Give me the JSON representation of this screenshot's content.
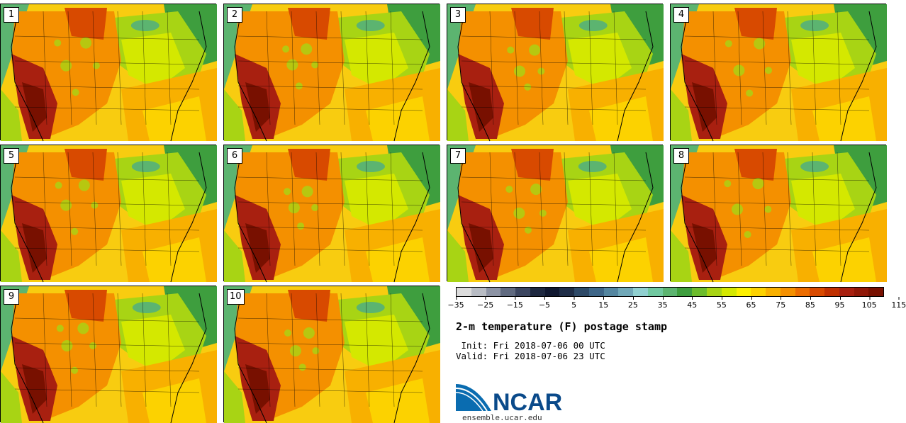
{
  "panels": [
    {
      "label": "1"
    },
    {
      "label": "2"
    },
    {
      "label": "3"
    },
    {
      "label": "4"
    },
    {
      "label": "5"
    },
    {
      "label": "6"
    },
    {
      "label": "7"
    },
    {
      "label": "8"
    },
    {
      "label": "9"
    },
    {
      "label": "10"
    }
  ],
  "colorbar": {
    "colors": [
      "#dcdcdc",
      "#b8bcc4",
      "#8c93a4",
      "#606a80",
      "#3c4660",
      "#1e2840",
      "#101830",
      "#202e48",
      "#2e4a68",
      "#3e6688",
      "#5486a0",
      "#70a8b8",
      "#90d0d0",
      "#70c8a0",
      "#5cb470",
      "#3e9e3e",
      "#6cbc2c",
      "#a8d414",
      "#d4e800",
      "#fcf000",
      "#fcd200",
      "#f8b000",
      "#f49000",
      "#ec6c00",
      "#d84a00",
      "#c03000",
      "#a82010",
      "#901808",
      "#781000"
    ],
    "tick_labels": [
      "−35",
      "−25",
      "−15",
      "−5",
      "5",
      "15",
      "25",
      "35",
      "45",
      "55",
      "65",
      "75",
      "85",
      "95",
      "105",
      "115"
    ]
  },
  "title": "2-m temperature (F) postage stamp",
  "init_line": " Init: Fri 2018-07-06 00 UTC",
  "valid_line": "Valid: Fri 2018-07-06 23 UTC",
  "logo": {
    "text": "NCAR",
    "url": "ensemble.ucar.edu",
    "color": "#0a4a8a"
  }
}
